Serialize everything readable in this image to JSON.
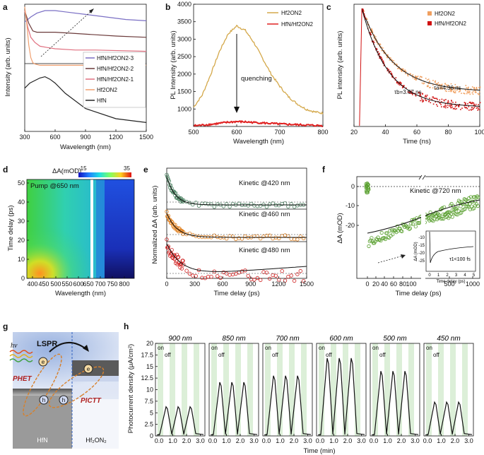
{
  "panel_letters": [
    "a",
    "b",
    "c",
    "d",
    "e",
    "f",
    "g",
    "h"
  ],
  "chart_data": [
    {
      "panel": "a",
      "type": "line",
      "title": "",
      "xlabel": "Wavelength (nm)",
      "ylabel": "Intensity (arb. units)",
      "xlim": [
        300,
        1500
      ],
      "xticks": [
        "300",
        "600",
        "900",
        "1200",
        "1500"
      ],
      "series": [
        {
          "name": "HfN/Hf2ON2-3",
          "color": "#7a6fc4",
          "x": [
            300,
            360,
            420,
            500,
            600,
            700,
            900,
            1100,
            1300,
            1500
          ],
          "y": [
            0.86,
            0.9,
            0.93,
            0.95,
            0.95,
            0.94,
            0.92,
            0.9,
            0.88,
            0.87
          ]
        },
        {
          "name": "HfN/Hf2ON2-2",
          "color": "#6b3a3a",
          "x": [
            300,
            340,
            380,
            420,
            500,
            600,
            800,
            1000,
            1200,
            1500
          ],
          "y": [
            0.95,
            0.85,
            0.79,
            0.78,
            0.78,
            0.78,
            0.77,
            0.76,
            0.75,
            0.74
          ]
        },
        {
          "name": "HfN/Hf2ON2-1",
          "color": "#e07080",
          "x": [
            300,
            330,
            360,
            400,
            450,
            520,
            600,
            800,
            1000,
            1500
          ],
          "y": [
            0.95,
            0.82,
            0.74,
            0.7,
            0.67,
            0.66,
            0.65,
            0.64,
            0.64,
            0.63
          ]
        },
        {
          "name": "Hf2ON2",
          "color": "#f0a070",
          "x": [
            300,
            320,
            340,
            360,
            380,
            400,
            450,
            600,
            900,
            1500
          ],
          "y": [
            0.98,
            0.85,
            0.68,
            0.58,
            0.54,
            0.53,
            0.52,
            0.52,
            0.52,
            0.52
          ]
        },
        {
          "name": "HfN",
          "color": "#222222",
          "x": [
            300,
            350,
            400,
            450,
            500,
            550,
            600,
            700,
            900,
            1200,
            1500
          ],
          "y": [
            0.34,
            0.38,
            0.4,
            0.42,
            0.43,
            0.41,
            0.38,
            0.3,
            0.18,
            0.1,
            0.07
          ]
        }
      ],
      "legend": [
        "HfN/Hf2ON2-3",
        "HfN/Hf2ON2-2",
        "HfN/Hf2ON2-1",
        "Hf2ON2",
        "HfN"
      ]
    },
    {
      "panel": "b",
      "type": "line",
      "xlabel": "Wavelength (nm)",
      "ylabel": "PL Intensity (arb. units)",
      "xlim": [
        500,
        800
      ],
      "ylim": [
        500,
        4000
      ],
      "xticks": [
        "500",
        "600",
        "700",
        "800"
      ],
      "yticks": [
        "1000",
        "1500",
        "2000",
        "2500",
        "3000",
        "3500",
        "4000"
      ],
      "annotation": "quenching",
      "series": [
        {
          "name": "Hf2ON2",
          "color": "#d4a84a",
          "x": [
            500,
            520,
            540,
            560,
            580,
            600,
            620,
            640,
            660,
            680,
            700,
            720,
            740,
            760,
            780,
            800
          ],
          "y": [
            1050,
            1400,
            2000,
            2650,
            3150,
            3380,
            3250,
            2900,
            2450,
            2000,
            1650,
            1350,
            1150,
            1000,
            920,
            880
          ]
        },
        {
          "name": "HfN/Hf2ON2",
          "color": "#e02020",
          "x": [
            500,
            540,
            580,
            600,
            620,
            660,
            700,
            760,
            800
          ],
          "y": [
            520,
            560,
            620,
            640,
            630,
            600,
            570,
            540,
            520
          ]
        }
      ]
    },
    {
      "panel": "c",
      "type": "scatter",
      "xlabel": "Time (ns)",
      "ylabel": "PL intensity (arb. units)",
      "xlim": [
        20,
        100
      ],
      "xticks": [
        "20",
        "40",
        "60",
        "80",
        "100"
      ],
      "series": [
        {
          "name": "Hf2ON2",
          "color": "#f0a060",
          "tau": "τa=4.36 ns"
        },
        {
          "name": "HfN/Hf2ON2",
          "color": "#d01010",
          "tau": "τb=3.67 ns"
        }
      ]
    },
    {
      "panel": "d",
      "type": "heatmap",
      "title": "ΔA(mOD)",
      "colorbar_range": [
        "-15",
        "35"
      ],
      "annotation": "Pump @650 nm",
      "xlabel": "Wavelength (nm)",
      "ylabel": "Time delay (ps)",
      "xticks": [
        "400",
        "450",
        "500",
        "550",
        "600",
        "650",
        "700",
        "750",
        "800"
      ],
      "yticks": [
        "0",
        "10",
        "20",
        "30",
        "40",
        "50"
      ]
    },
    {
      "panel": "e",
      "type": "scatter",
      "xlabel": "Time delay (ps)",
      "ylabel": "Normalized ΔA (arb. units)",
      "xlim": [
        0,
        1500
      ],
      "xticks": [
        "0",
        "300",
        "600",
        "900",
        "1200",
        "1500"
      ],
      "series": [
        {
          "name": "Kinetic @420 nm",
          "color": "#4a8060"
        },
        {
          "name": "Kinetic @460 nm",
          "color": "#e08020"
        },
        {
          "name": "Kinetic @480 nm",
          "color": "#d02020"
        }
      ]
    },
    {
      "panel": "f",
      "type": "scatter",
      "xlabel": "Time delay (ps)",
      "ylabel": "ΔA (mOD)",
      "xticks": [
        "0",
        "20",
        "40",
        "60",
        "80",
        "100",
        "500",
        "1000"
      ],
      "yticks": [
        "0",
        "-10",
        "-20"
      ],
      "annotation": "Kinetic @720 nm",
      "inset": {
        "ylabel": "ΔA (mOD)",
        "xlabel": "Time delay (ps)",
        "xticks": [
          "0",
          "1",
          "2",
          "3",
          "4",
          "5"
        ],
        "yticks": [
          "-10",
          "-15",
          "-20",
          "-25"
        ],
        "label": "τ1<100 fs"
      }
    },
    {
      "panel": "h",
      "type": "line",
      "xlabel": "Time (min)",
      "ylabel": "Photocurrent density (μA/cm²)",
      "ylim": [
        0,
        20
      ],
      "yticks": [
        "0",
        "2.5",
        "5",
        "7.5",
        "10",
        "12.5",
        "15",
        "17.5",
        "20"
      ],
      "xticks": [
        "0.0",
        "1.0",
        "2.0",
        "3.0"
      ],
      "on_label": "on",
      "off_label": "off",
      "subpanels": [
        {
          "name": "900 nm",
          "peak": 6.3
        },
        {
          "name": "850 nm",
          "peak": 11.6
        },
        {
          "name": "700 nm",
          "peak": 13.0
        },
        {
          "name": "600 nm",
          "peak": 16.8
        },
        {
          "name": "500 nm",
          "peak": 14.0
        },
        {
          "name": "450 nm",
          "peak": 7.3
        }
      ]
    }
  ],
  "schematic_g": {
    "light": "hν",
    "lspr": "LSPR",
    "phet": "PHET",
    "pictt": "PICTT",
    "electron": "e",
    "hole": "h",
    "left_material": "HfN",
    "right_material": "Hf₂ON₂"
  }
}
